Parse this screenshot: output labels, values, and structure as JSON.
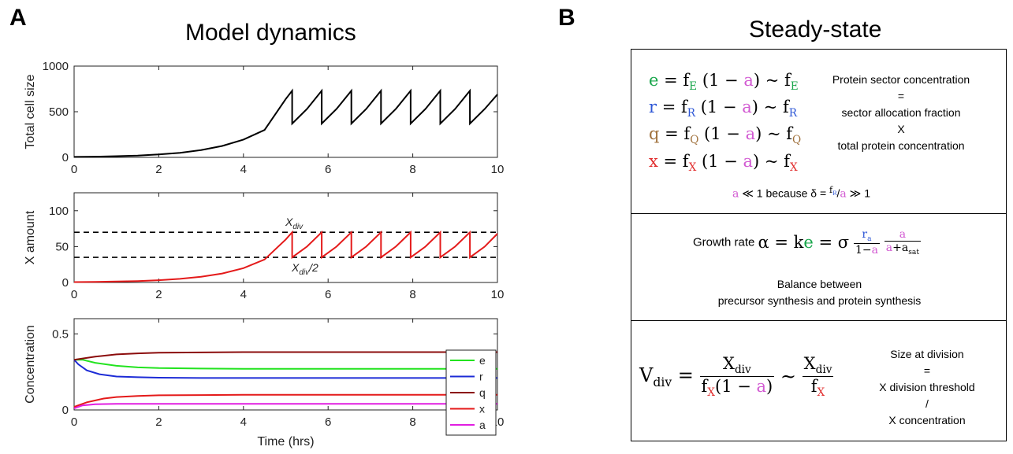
{
  "panel_a": {
    "letter": "A",
    "title": "Model dynamics"
  },
  "panel_b": {
    "letter": "B",
    "title": "Steady-state"
  },
  "colors": {
    "e": "#22e31f",
    "r": "#1c2bd6",
    "q": "#8b0c0c",
    "x": "#e41a1a",
    "a": "#e11ee1",
    "size": "#000000",
    "threshold": "#000000"
  },
  "chart_data": [
    {
      "type": "line",
      "ylabel": "Total cell size",
      "xlabel": "",
      "xlim": [
        0,
        10
      ],
      "ylim": [
        0,
        1000
      ],
      "xticks": [
        "0",
        "2",
        "4",
        "6",
        "8",
        "10"
      ],
      "yticks": [
        "0",
        "500",
        "1000"
      ],
      "series": [
        {
          "color": "#000000",
          "x": [
            0,
            0.5,
            1,
            1.5,
            2,
            2.5,
            3,
            3.5,
            4,
            4.5,
            5,
            5.15,
            5.15,
            5.5,
            5.85,
            5.85,
            6.2,
            6.55,
            6.55,
            6.9,
            7.25,
            7.25,
            7.6,
            7.95,
            7.95,
            8.3,
            8.65,
            8.65,
            9,
            9.35,
            9.35,
            9.7,
            10
          ],
          "y": [
            5,
            8,
            13,
            20,
            32,
            50,
            80,
            125,
            195,
            300,
            640,
            730,
            370,
            530,
            730,
            370,
            530,
            730,
            370,
            530,
            730,
            370,
            530,
            730,
            370,
            530,
            730,
            370,
            530,
            730,
            370,
            530,
            690
          ]
        }
      ]
    },
    {
      "type": "line",
      "ylabel": "X amount",
      "xlabel": "",
      "xlim": [
        0,
        10
      ],
      "ylim": [
        0,
        125
      ],
      "xticks": [
        "0",
        "2",
        "4",
        "6",
        "8",
        "10"
      ],
      "yticks": [
        "0",
        "50",
        "100"
      ],
      "series": [
        {
          "color": "#e41a1a",
          "x": [
            0,
            0.5,
            1,
            1.5,
            2,
            2.5,
            3,
            3.5,
            4,
            4.5,
            5,
            5.15,
            5.15,
            5.5,
            5.85,
            5.85,
            6.2,
            6.55,
            6.55,
            6.9,
            7.25,
            7.25,
            7.6,
            7.95,
            7.95,
            8.3,
            8.65,
            8.65,
            9,
            9.35,
            9.35,
            9.7,
            10
          ],
          "y": [
            0.5,
            0.8,
            1.3,
            2,
            3.2,
            5,
            8,
            12.5,
            20,
            32,
            60,
            70,
            35,
            50,
            70,
            35,
            50,
            70,
            35,
            50,
            70,
            35,
            50,
            70,
            35,
            50,
            70,
            35,
            50,
            70,
            35,
            50,
            68
          ]
        }
      ],
      "hlines": [
        {
          "y": 70,
          "label": "X_div",
          "style": "dashed"
        },
        {
          "y": 35,
          "label": "X_div/2",
          "style": "dashed"
        }
      ]
    },
    {
      "type": "line",
      "ylabel": "Concentration",
      "xlabel": "Time (hrs)",
      "xlim": [
        0,
        10
      ],
      "ylim": [
        0,
        0.6
      ],
      "xticks": [
        "0",
        "2",
        "4",
        "6",
        "8",
        "10"
      ],
      "yticks": [
        "0",
        "0.5"
      ],
      "legend": {
        "placement": "top-right",
        "entries": [
          "e",
          "r",
          "q",
          "x",
          "a"
        ]
      },
      "series": [
        {
          "name": "e",
          "color": "#22e31f",
          "x": [
            0,
            0.2,
            0.5,
            1,
            1.5,
            2,
            3,
            4,
            10
          ],
          "y": [
            0.33,
            0.33,
            0.31,
            0.29,
            0.28,
            0.275,
            0.272,
            0.27,
            0.27
          ]
        },
        {
          "name": "r",
          "color": "#1c2bd6",
          "x": [
            0,
            0.1,
            0.3,
            0.6,
            1,
            1.5,
            2,
            3,
            10
          ],
          "y": [
            0.33,
            0.3,
            0.26,
            0.235,
            0.22,
            0.215,
            0.212,
            0.21,
            0.21
          ]
        },
        {
          "name": "q",
          "color": "#8b0c0c",
          "x": [
            0,
            0.5,
            1,
            1.5,
            2,
            3,
            4,
            10
          ],
          "y": [
            0.33,
            0.35,
            0.365,
            0.372,
            0.376,
            0.378,
            0.38,
            0.38
          ]
        },
        {
          "name": "x",
          "color": "#e41a1a",
          "x": [
            0,
            0.3,
            0.7,
            1,
            1.5,
            2,
            3,
            4,
            10
          ],
          "y": [
            0.02,
            0.05,
            0.075,
            0.085,
            0.092,
            0.096,
            0.098,
            0.1,
            0.1
          ]
        },
        {
          "name": "a",
          "color": "#e11ee1",
          "x": [
            0,
            0.2,
            0.5,
            1,
            2,
            10
          ],
          "y": [
            0.01,
            0.03,
            0.038,
            0.04,
            0.04,
            0.04
          ]
        }
      ]
    }
  ],
  "steady": {
    "equations": [
      {
        "var": "e",
        "sub": "E"
      },
      {
        "var": "r",
        "sub": "R"
      },
      {
        "var": "q",
        "sub": "Q"
      },
      {
        "var": "x",
        "sub": "X"
      }
    ],
    "eq_f": "f",
    "eq_one": "(1 − ",
    "eq_a": "a",
    "eq_close": ")",
    "eq_eq": " = ",
    "eq_sim": " ~ ",
    "sector_text": [
      "Protein sector concentration",
      "=",
      "sector allocation fraction",
      "X",
      "total protein concentration"
    ],
    "a_note_a": "a",
    "a_note_rest": " ≪ 1 because δ = ",
    "a_note_fr": "f",
    "a_note_fr_sub": "R",
    "a_note_slash": "/",
    "a_note_a2": "a",
    "a_note_tail": " ≫ 1",
    "growth_label": "Growth rate ",
    "growth_alpha": "α = k",
    "growth_e": "e",
    "growth_sigma": " = σ",
    "growth_ra": "r",
    "growth_ra_sub": "a",
    "growth_den1": "1−",
    "growth_a": "a",
    "growth_den2_plus": "+a",
    "growth_den2_sub": "sat",
    "balance_text": [
      "Balance between",
      "precursor synthesis and protein synthesis"
    ],
    "vdiv_V": "V",
    "vdiv_sub": "div",
    "vdiv_X": "X",
    "vdiv_f": "f",
    "vdiv_fsub": "X",
    "vdiv_den_rest": "(1 − ",
    "vdiv_a": "a",
    "vdiv_close": ")",
    "vdiv_sim": "~",
    "size_text": [
      "Size at division",
      "=",
      "X division threshold",
      "/",
      "X concentration"
    ]
  }
}
